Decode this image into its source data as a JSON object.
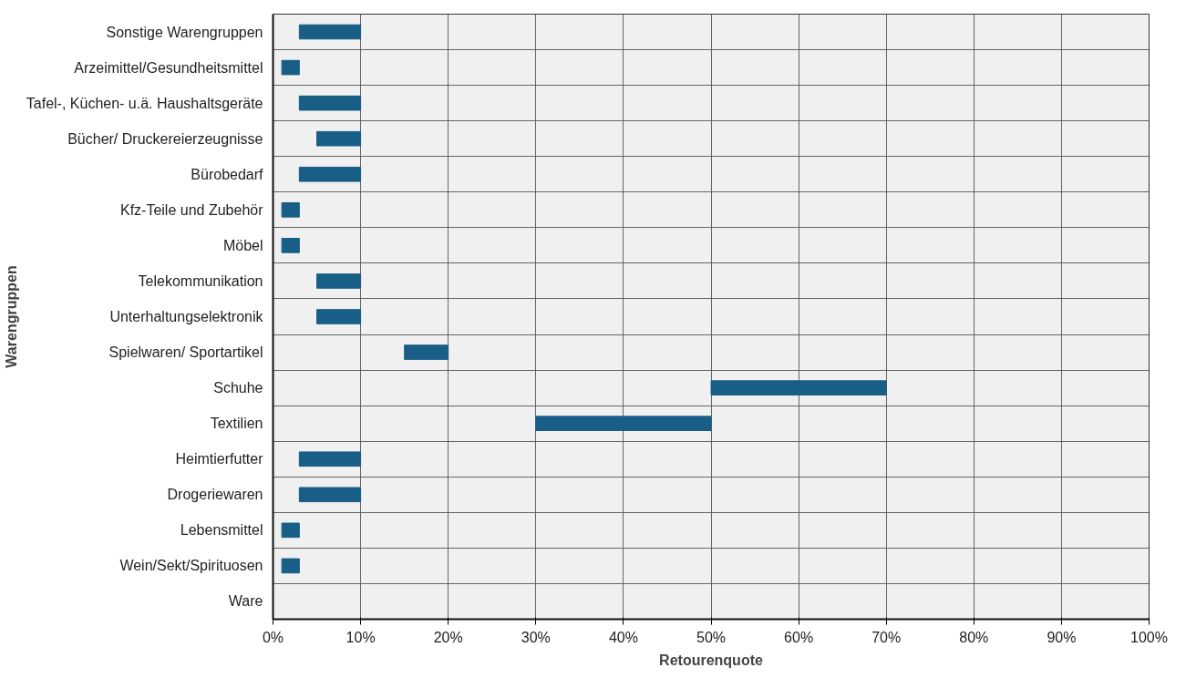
{
  "chart_data": {
    "type": "bar",
    "orientation": "horizontal",
    "xlabel": "Retourenquote",
    "ylabel": "Warengruppen",
    "categories": [
      "Sonstige Warengruppen",
      "Arzeimittel/Gesundheitsmittel",
      "Tafel-, Küchen- u.ä. Haushaltsgeräte",
      "Bücher/ Druckereierzeugnisse",
      "Bürobedarf",
      "Kfz-Teile und Zubehör",
      "Möbel",
      "Telekommunikation",
      "Unterhaltungselektronik",
      "Spielwaren/ Sportartikel",
      "Schuhe",
      "Textilien",
      "Heimtierfutter",
      "Drogeriewaren",
      "Lebensmittel",
      "Wein/Sekt/Spirituosen",
      "Ware"
    ],
    "base": [
      3,
      1,
      3,
      5,
      3,
      1,
      1,
      5,
      5,
      15,
      50,
      30,
      3,
      3,
      1,
      1,
      null
    ],
    "values": [
      7,
      2,
      7,
      5,
      7,
      2,
      2,
      5,
      5,
      5,
      20,
      20,
      7,
      7,
      2,
      2,
      null
    ],
    "color": "#185e86",
    "xlim": [
      0,
      100
    ],
    "xticks": [
      {
        "value": 0,
        "label": "0%"
      },
      {
        "value": 10,
        "label": "10%"
      },
      {
        "value": 20,
        "label": "20%"
      },
      {
        "value": 30,
        "label": "30%"
      },
      {
        "value": 40,
        "label": "40%"
      },
      {
        "value": 50,
        "label": "50%"
      },
      {
        "value": 60,
        "label": "60%"
      },
      {
        "value": 70,
        "label": "70%"
      },
      {
        "value": 80,
        "label": "80%"
      },
      {
        "value": 90,
        "label": "90%"
      },
      {
        "value": 100,
        "label": "100%"
      }
    ],
    "grid": true
  }
}
